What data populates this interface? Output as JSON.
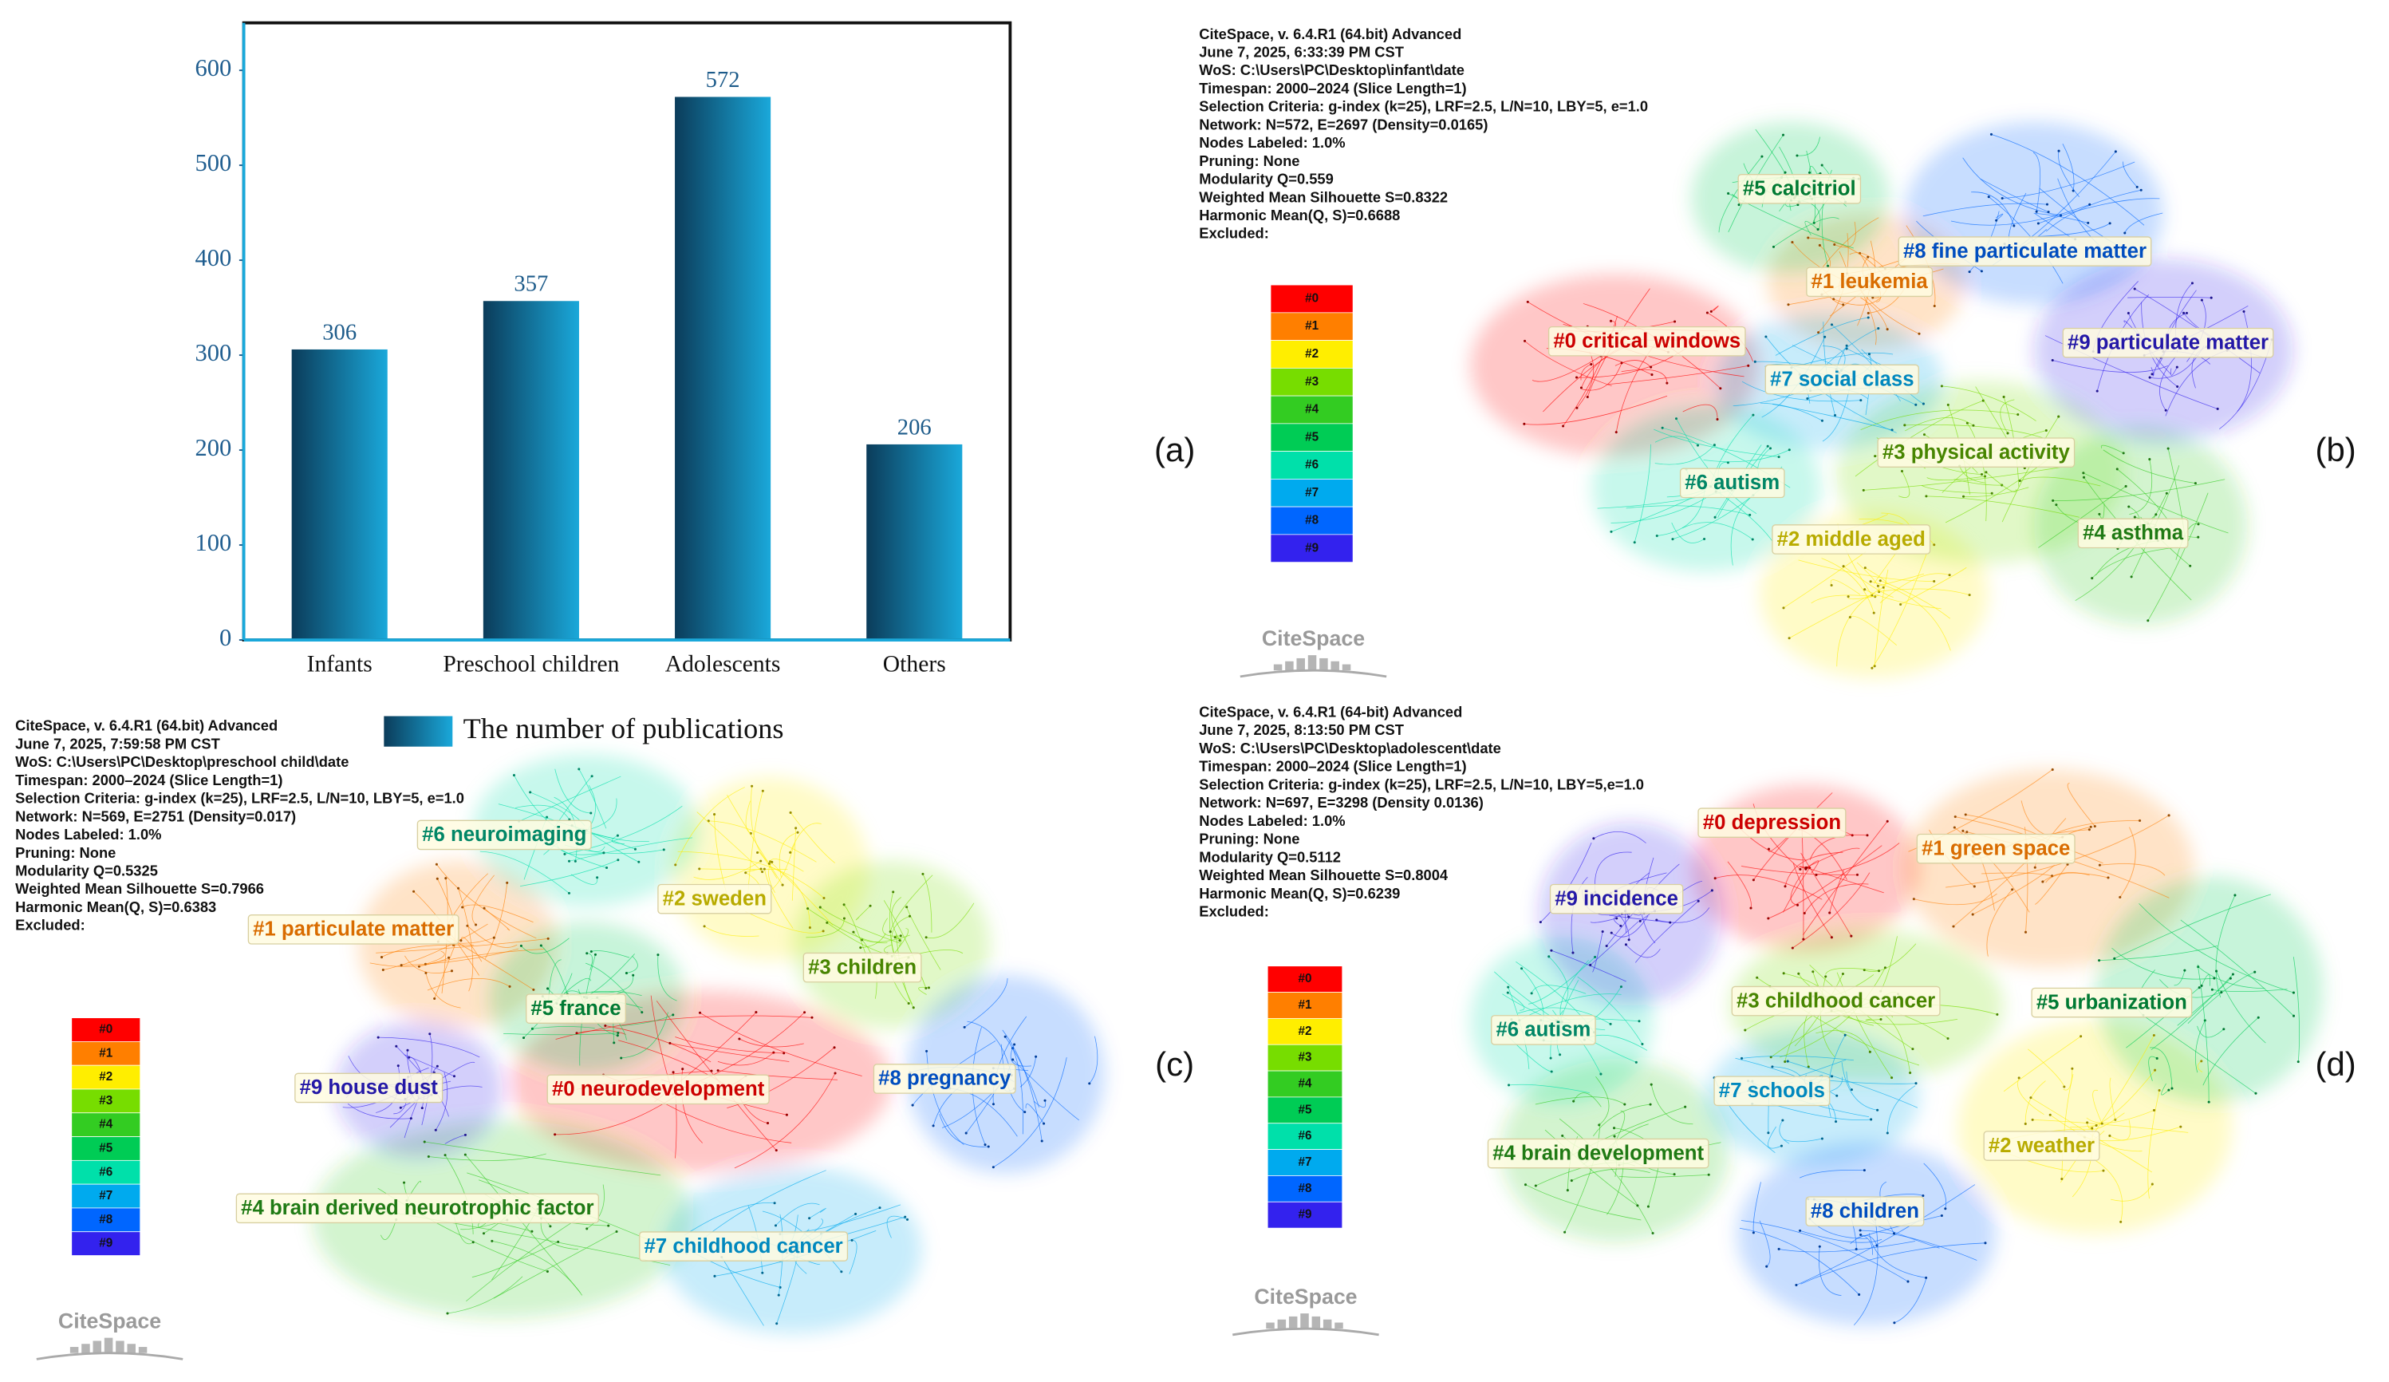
{
  "chart_data": {
    "type": "bar",
    "panel_label": "(a)",
    "categories": [
      "Infants",
      "Preschool children",
      "Adolescents",
      "Others"
    ],
    "series": [
      {
        "name": "The number of publications",
        "color": "#1aa8da",
        "values": [
          306,
          357,
          572,
          206
        ]
      }
    ],
    "ylim": [
      0,
      650
    ],
    "yticks": [
      0,
      100,
      200,
      300,
      400,
      500,
      600
    ],
    "grid": false,
    "legend": "bottom"
  },
  "cluster_colors": [
    "#ff0000",
    "#ff7f00",
    "#ffee00",
    "#77dd00",
    "#33cc22",
    "#00cc55",
    "#00e0aa",
    "#00aaee",
    "#0066ff",
    "#3322ee"
  ],
  "networks": [
    {
      "panel_label": "(b)",
      "logo": "CiteSpace",
      "info": [
        "CiteSpace, v. 6.4.R1 (64.bit) Advanced",
        "June 7, 2025, 6:33:39 PM CST",
        "WoS: C:\\Users\\PC\\Desktop\\infant\\date",
        "Timespan: 2000–2024 (Slice Length=1)",
        "Selection Criteria: g-index (k=25),  LRF=2.5,  L/N=10,  LBY=5,  e=1.0",
        "Network: N=572, E=2697 (Density=0.0165)",
        "Nodes Labeled: 1.0%",
        "Pruning: None",
        "Modularity Q=0.559",
        "Weighted Mean Silhouette S=0.8322",
        "Harmonic Mean(Q, S)=0.6688",
        "Excluded:"
      ],
      "legend": [
        "#0",
        "#1",
        "#2",
        "#3",
        "#4",
        "#5",
        "#6",
        "#7",
        "#8",
        "#9"
      ],
      "clusters": [
        "#0 critical windows",
        "#1 leukemia",
        "#2 middle aged",
        "#3 physical activity",
        "#4 asthma",
        "#5 calcitriol",
        "#6 autism",
        "#7 social class",
        "#8 fine particulate matter",
        "#9 particulate matter"
      ]
    },
    {
      "panel_label": "(c)",
      "logo": "CiteSpace",
      "info": [
        "CiteSpace, v. 6.4.R1 (64.bit) Advanced",
        "June 7, 2025, 7:59:58 PM CST",
        "WoS: C:\\Users\\PC\\Desktop\\preschool child\\date",
        "Timespan: 2000–2024 (Slice Length=1)",
        "Selection Criteria: g-index (k=25), LRF=2.5, L/N=10, LBY=5, e=1.0",
        "Network: N=569, E=2751 (Density=0.017)",
        "Nodes Labeled: 1.0%",
        "Pruning: None",
        "Modularity Q=0.5325",
        "Weighted Mean Silhouette S=0.7966",
        "Harmonic Mean(Q, S)=0.6383",
        "Excluded:"
      ],
      "legend": [
        "#0",
        "#1",
        "#2",
        "#3",
        "#4",
        "#5",
        "#6",
        "#7",
        "#8",
        "#9"
      ],
      "clusters": [
        "#0 neurodevelopment",
        "#1 particulate matter",
        "#2 sweden",
        "#3 children",
        "#4 brain derived neurotrophic factor",
        "#5 france",
        "#6 neuroimaging",
        "#7 childhood cancer",
        "#8 pregnancy",
        "#9 house dust"
      ]
    },
    {
      "panel_label": "(d)",
      "logo": "CiteSpace",
      "info": [
        "CiteSpace, v. 6.4.R1 (64-bit) Advanced",
        "June 7, 2025, 8:13:50 PM CST",
        "WoS: C:\\Users\\PC\\Desktop\\adolescent\\date",
        "Timespan: 2000–2024 (Slice Length=1)",
        "Selection Criteria: g-index (k=25), LRF=2.5, L/N=10, LBY=5,e=1.0",
        "Network: N=697, E=3298 (Density 0.0136)",
        "Nodes Labeled: 1.0%",
        "Pruning: None",
        "Modularity Q=0.5112",
        "Weighted Mean Silhouette S=0.8004",
        "Harmonic Mean(Q, S)=0.6239",
        "Excluded:"
      ],
      "legend": [
        "#0",
        "#1",
        "#2",
        "#3",
        "#4",
        "#5",
        "#6",
        "#7",
        "#8",
        "#9"
      ],
      "clusters": [
        "#0 depression",
        "#1 green space",
        "#2 weather",
        "#3 childhood cancer",
        "#4 brain development",
        "#5 urbanization",
        "#6 autism",
        "#7 schools",
        "#8 children",
        "#9 incidence"
      ]
    }
  ]
}
